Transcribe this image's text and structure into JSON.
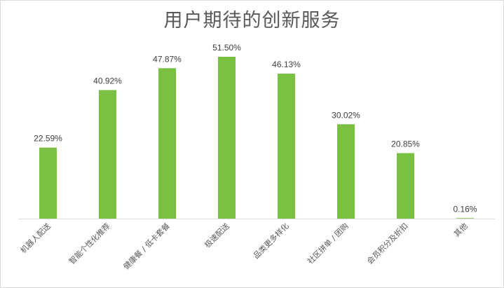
{
  "chart_data": {
    "type": "bar",
    "title": "用户期待的创新服务",
    "categories": [
      "机器人配送",
      "智能个性化推荐",
      "健康餐 / 低卡套餐",
      "极速配送",
      "品类更多样化",
      "社区拼单 / 团购",
      "会员积分及折扣",
      "其他"
    ],
    "values": [
      22.59,
      40.92,
      47.87,
      51.5,
      46.13,
      30.02,
      20.85,
      0.16
    ],
    "data_labels": [
      "22.59%",
      "40.92%",
      "47.87%",
      "51.50%",
      "46.13%",
      "30.02%",
      "20.85%",
      "0.16%"
    ],
    "xlabel": "",
    "ylabel": "",
    "ylim": [
      0,
      60
    ],
    "grid": false,
    "legend": "none",
    "bar_color": "#7ac143",
    "axis_color": "#d9d9d9"
  }
}
